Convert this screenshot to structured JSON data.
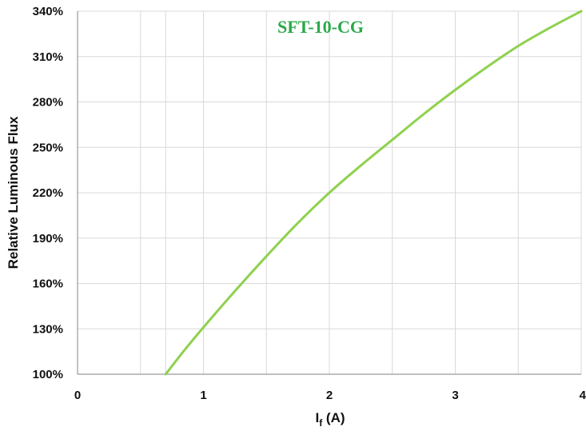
{
  "colors": {
    "curve": "#8fd14f",
    "title": "#2aa84a",
    "grid": "#d9d9d9",
    "axis": "#999999"
  },
  "chart_data": {
    "type": "line",
    "title": "SFT-10-CG",
    "xlabel": "I",
    "xlabel_subscript": "f",
    "xlabel_suffix": " (A)",
    "ylabel": "Relative Luminous Flux",
    "xlim": [
      0,
      4
    ],
    "ylim": [
      100,
      340
    ],
    "x_ticks": [
      0,
      1,
      2,
      3,
      4
    ],
    "x_tick_labels": [
      "0",
      "1",
      "2",
      "3",
      "4"
    ],
    "x_minor_grid": [
      0.5,
      0.7,
      1.5,
      2.5,
      3.5
    ],
    "y_ticks": [
      100,
      130,
      160,
      190,
      220,
      250,
      280,
      310,
      340
    ],
    "y_tick_labels": [
      "100%",
      "130%",
      "160%",
      "190%",
      "220%",
      "250%",
      "280%",
      "310%",
      "340%"
    ],
    "grid": true,
    "legend": "none",
    "series": [
      {
        "x": [
          0.7,
          0.85,
          1.0,
          1.25,
          1.5,
          1.75,
          2.0,
          2.25,
          2.5,
          2.75,
          3.0,
          3.25,
          3.5,
          3.75,
          4.0
        ],
        "y": [
          100,
          116,
          131,
          155,
          178,
          200,
          220,
          238,
          255,
          272,
          288,
          303,
          317,
          329,
          340
        ]
      }
    ]
  }
}
